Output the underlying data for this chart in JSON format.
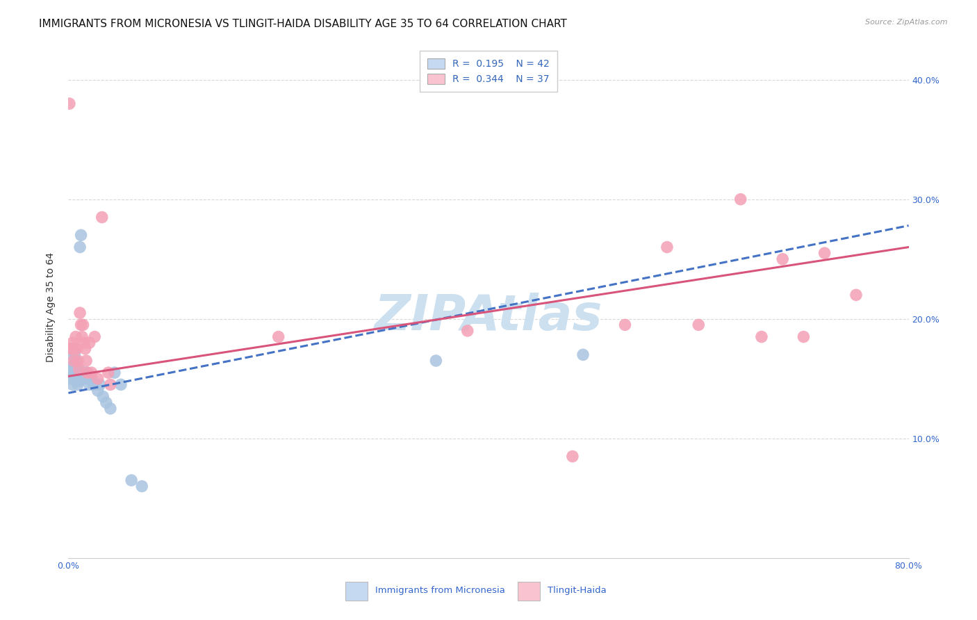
{
  "title": "IMMIGRANTS FROM MICRONESIA VS TLINGIT-HAIDA DISABILITY AGE 35 TO 64 CORRELATION CHART",
  "source": "Source: ZipAtlas.com",
  "ylabel": "Disability Age 35 to 64",
  "xlim": [
    0.0,
    0.8
  ],
  "ylim": [
    0.0,
    0.42
  ],
  "xtick_positions": [
    0.0,
    0.1,
    0.2,
    0.3,
    0.4,
    0.5,
    0.6,
    0.7,
    0.8
  ],
  "ytick_positions": [
    0.1,
    0.2,
    0.3,
    0.4
  ],
  "yticklabels_right": [
    "10.0%",
    "20.0%",
    "30.0%",
    "40.0%"
  ],
  "watermark": "ZIPAtlas",
  "blue_R": "0.195",
  "blue_N": "42",
  "pink_R": "0.344",
  "pink_N": "37",
  "blue_dot_color": "#a8c4e0",
  "pink_dot_color": "#f4a0b5",
  "blue_line_color": "#4472c4",
  "pink_line_color": "#d9547a",
  "legend_blue_fill": "#c5d9f1",
  "legend_pink_fill": "#f9c4d0",
  "legend_text_color": "#3366bb",
  "grid_color": "#d8d8d8",
  "background_color": "#ffffff",
  "title_fontsize": 11,
  "axis_label_fontsize": 10,
  "tick_fontsize": 9,
  "watermark_fontsize": 52,
  "watermark_color": "#cce0f0",
  "blue_x": [
    0.001,
    0.002,
    0.003,
    0.003,
    0.004,
    0.004,
    0.005,
    0.005,
    0.006,
    0.006,
    0.007,
    0.007,
    0.008,
    0.008,
    0.009,
    0.009,
    0.01,
    0.01,
    0.011,
    0.012,
    0.013,
    0.014,
    0.015,
    0.016,
    0.017,
    0.018,
    0.019,
    0.02,
    0.022,
    0.024,
    0.026,
    0.028,
    0.03,
    0.033,
    0.036,
    0.04,
    0.044,
    0.05,
    0.06,
    0.07,
    0.35,
    0.49
  ],
  "blue_y": [
    0.155,
    0.15,
    0.16,
    0.17,
    0.155,
    0.145,
    0.175,
    0.16,
    0.17,
    0.155,
    0.165,
    0.15,
    0.16,
    0.148,
    0.155,
    0.145,
    0.155,
    0.148,
    0.26,
    0.27,
    0.155,
    0.155,
    0.155,
    0.15,
    0.155,
    0.155,
    0.15,
    0.145,
    0.15,
    0.145,
    0.145,
    0.14,
    0.145,
    0.135,
    0.13,
    0.125,
    0.155,
    0.145,
    0.065,
    0.06,
    0.165,
    0.17
  ],
  "pink_x": [
    0.001,
    0.002,
    0.003,
    0.004,
    0.005,
    0.006,
    0.007,
    0.008,
    0.009,
    0.01,
    0.011,
    0.012,
    0.013,
    0.014,
    0.015,
    0.016,
    0.017,
    0.018,
    0.02,
    0.022,
    0.025,
    0.028,
    0.032,
    0.038,
    0.04,
    0.2,
    0.38,
    0.48,
    0.53,
    0.57,
    0.6,
    0.64,
    0.66,
    0.68,
    0.7,
    0.72,
    0.75
  ],
  "pink_y": [
    0.38,
    0.175,
    0.175,
    0.18,
    0.165,
    0.175,
    0.185,
    0.175,
    0.165,
    0.158,
    0.205,
    0.195,
    0.185,
    0.195,
    0.18,
    0.175,
    0.165,
    0.155,
    0.18,
    0.155,
    0.185,
    0.15,
    0.285,
    0.155,
    0.145,
    0.185,
    0.19,
    0.085,
    0.195,
    0.26,
    0.195,
    0.3,
    0.185,
    0.25,
    0.185,
    0.255,
    0.22
  ],
  "blue_line_x0": 0.0,
  "blue_line_x1": 0.8,
  "blue_line_y0": 0.138,
  "blue_line_y1": 0.278,
  "pink_line_x0": 0.0,
  "pink_line_x1": 0.8,
  "pink_line_y0": 0.152,
  "pink_line_y1": 0.26,
  "bottom_legend_labels": [
    "Immigrants from Micronesia",
    "Tlingit-Haida"
  ]
}
